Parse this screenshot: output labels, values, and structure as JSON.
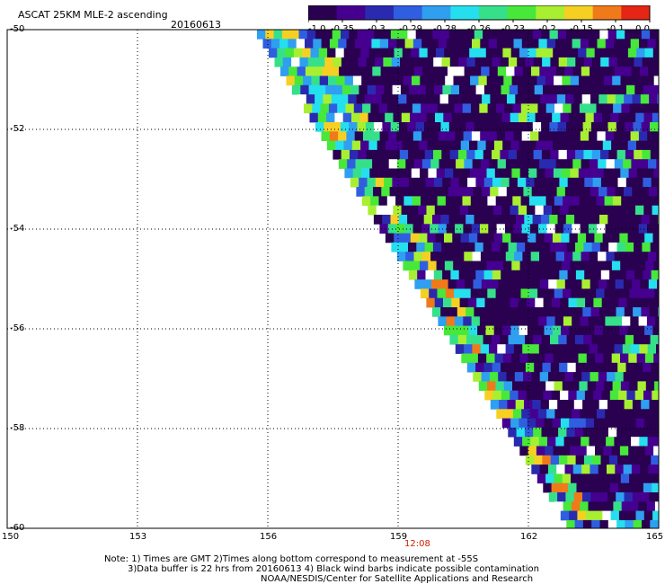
{
  "header": {
    "title": "ASCAT 25KM MLE-2 ascending",
    "date": "20160613"
  },
  "colorbar": {
    "labels": [
      "-1.0",
      "-0.35",
      "-0.3",
      "-0.29",
      "-0.28",
      "-0.26",
      "-0.23",
      "-0.2",
      "-0.15",
      "-0.1",
      "0.0"
    ],
    "colors": [
      "#2a0050",
      "#45008f",
      "#2a2ab0",
      "#2f5fe0",
      "#2f9ff0",
      "#25dfee",
      "#36e08a",
      "#47e83a",
      "#a8ef32",
      "#f5d023",
      "#f07a1a",
      "#e52515"
    ]
  },
  "map": {
    "lon_ticks": [
      "150",
      "153",
      "156",
      "159",
      "162",
      "165"
    ],
    "lat_ticks": [
      "-50",
      "-52",
      "-54",
      "-56",
      "-58",
      "-60"
    ],
    "time_label": "12:08"
  },
  "notes": {
    "line1": "Note: 1) Times are GMT 2)Times along bottom correspond to measurement at -55S",
    "line2": "3)Data buffer is 22 hrs from 20160613 4) Black wind barbs indicate possible contamination",
    "line3": "NOAA/NESDIS/Center for Satellite Applications and Research"
  }
}
